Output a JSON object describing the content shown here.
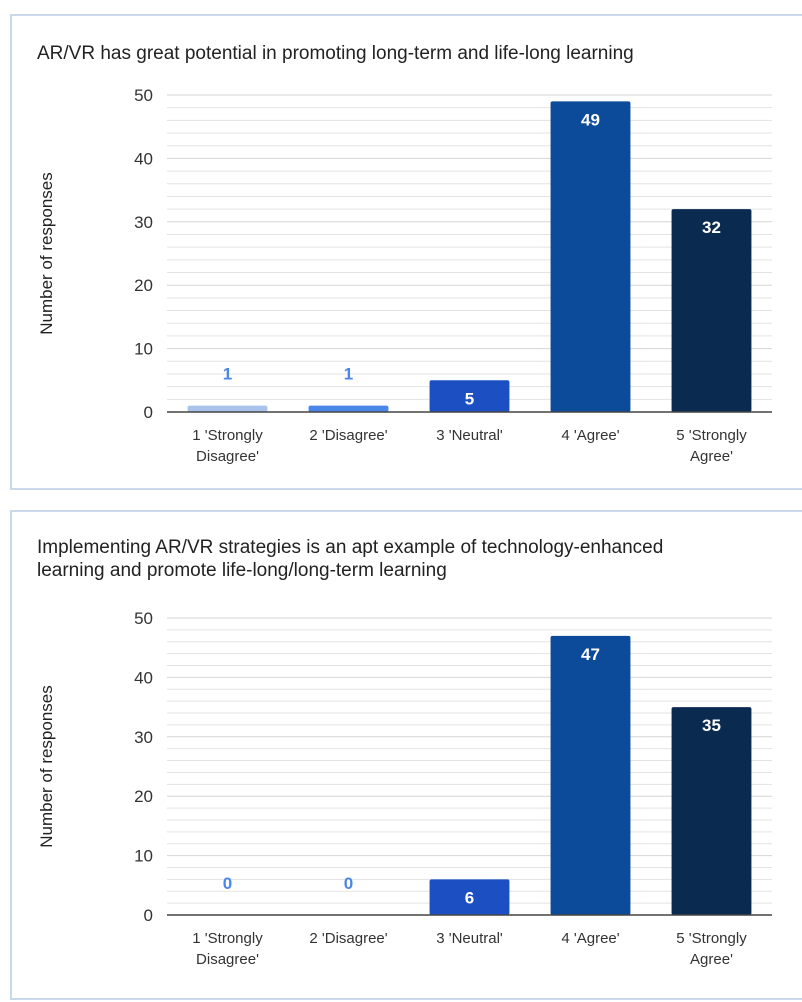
{
  "chart_data": [
    {
      "type": "bar",
      "title": "AR/VR has great potential in promoting long-term and life-long learning",
      "ylabel": "Number of responses",
      "xlabel": "",
      "categories": [
        "1 'Strongly\nDisagree'",
        "2 'Disagree'",
        "3 'Neutral'",
        "4 'Agree'",
        "5 'Strongly\nAgree'"
      ],
      "values": [
        1,
        1,
        5,
        49,
        32
      ],
      "ylim": [
        0,
        50
      ],
      "yticks": [
        0,
        10,
        20,
        30,
        40,
        50
      ],
      "grid": true,
      "bar_colors": [
        "#a8c4ec",
        "#4a86e8",
        "#1c4fc2",
        "#0c4a9a",
        "#0a2a50"
      ],
      "label_colors": [
        "#4a86e8",
        "#4a86e8",
        "#ffffff",
        "#ffffff",
        "#ffffff"
      ]
    },
    {
      "type": "bar",
      "title": "Implementing AR/VR strategies is an apt example of technology-enhanced\nlearning and promote life-long/long-term learning",
      "ylabel": "Number of responses",
      "xlabel": "",
      "categories": [
        "1 'Strongly\nDisagree'",
        "2 'Disagree'",
        "3 'Neutral'",
        "4 'Agree'",
        "5 'Strongly\nAgree'"
      ],
      "values": [
        0,
        0,
        6,
        47,
        35
      ],
      "ylim": [
        0,
        50
      ],
      "yticks": [
        0,
        10,
        20,
        30,
        40,
        50
      ],
      "grid": true,
      "bar_colors": [
        "#a8c4ec",
        "#4a86e8",
        "#1c4fc2",
        "#0c4a9a",
        "#0a2a50"
      ],
      "label_colors": [
        "#4a86e8",
        "#4a86e8",
        "#ffffff",
        "#ffffff",
        "#ffffff"
      ]
    }
  ]
}
